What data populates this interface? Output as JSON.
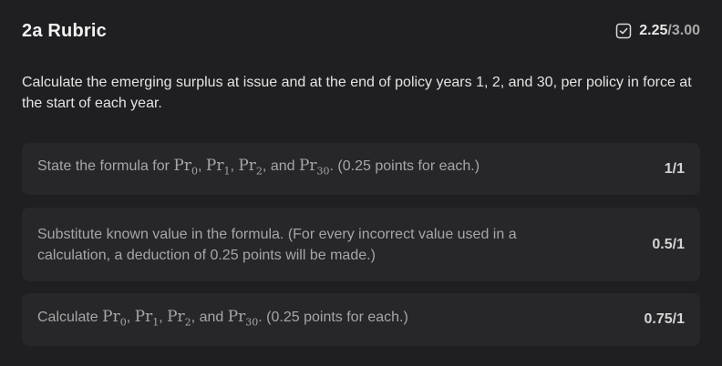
{
  "rubric": {
    "title": "2a Rubric",
    "score_earned": "2.25",
    "score_total": "/3.00",
    "question": "Calculate the emerging surplus at issue and at the end of policy years 1, 2, and 30, per policy in force at the start of each year."
  },
  "criteria": [
    {
      "prefix": "State the formula for ",
      "math": [
        {
          "base": "Pr",
          "sub": "0"
        },
        {
          "base": "Pr",
          "sub": "1"
        },
        {
          "base": "Pr",
          "sub": "2"
        },
        {
          "base": "Pr",
          "sub": "30"
        }
      ],
      "connectors": [
        ", ",
        ", ",
        ", and "
      ],
      "suffix": ". (0.25 points for each.)",
      "points": "1/1"
    },
    {
      "text": "Substitute known value in the formula. (For every incorrect value used in a calculation, a deduction of 0.25 points will be made.)",
      "points": "0.5/1"
    },
    {
      "prefix": "Calculate ",
      "math": [
        {
          "base": "Pr",
          "sub": "0"
        },
        {
          "base": "Pr",
          "sub": "1"
        },
        {
          "base": "Pr",
          "sub": "2"
        },
        {
          "base": "Pr",
          "sub": "30"
        }
      ],
      "connectors": [
        ", ",
        ", ",
        ", and "
      ],
      "suffix": ". (0.25 points for each.)",
      "points": "0.75/1"
    }
  ],
  "icons": {
    "score": "checkbox-checked-icon"
  },
  "colors": {
    "background": "#1f1f21",
    "card": "#27272a",
    "muted_text": "#a6a6a6"
  }
}
